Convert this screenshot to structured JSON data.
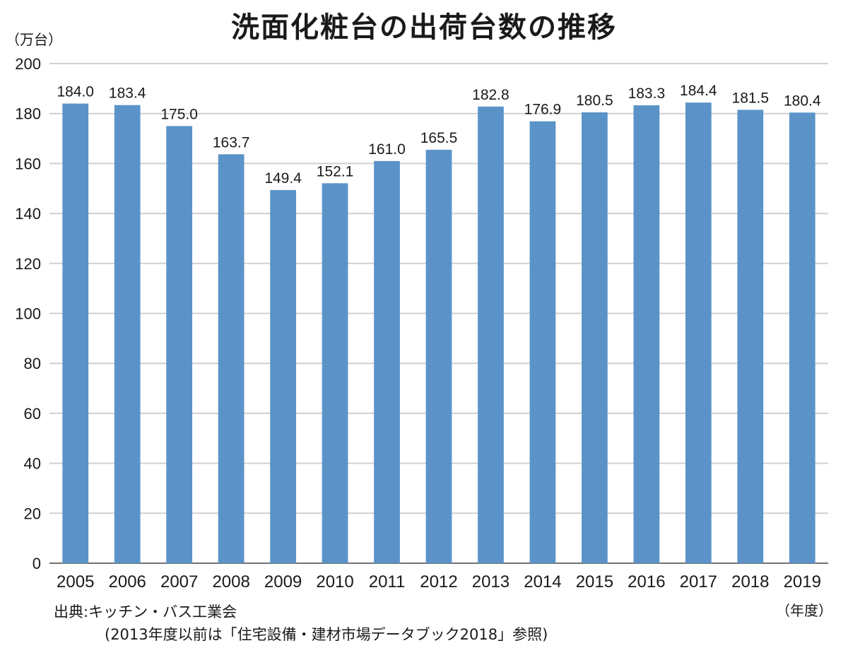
{
  "chart_data": {
    "type": "bar",
    "title": "洗面化粧台の出荷台数の推移",
    "ylabel": "（万台）",
    "xlabel": "（年度）",
    "categories": [
      "2005",
      "2006",
      "2007",
      "2008",
      "2009",
      "2010",
      "2011",
      "2012",
      "2013",
      "2014",
      "2015",
      "2016",
      "2017",
      "2018",
      "2019"
    ],
    "values": [
      184.0,
      183.4,
      175.0,
      163.7,
      149.4,
      152.1,
      161.0,
      165.5,
      182.8,
      176.9,
      180.5,
      183.3,
      184.4,
      181.5,
      180.4
    ],
    "data_labels": [
      "184.0",
      "183.4",
      "175.0",
      "163.7",
      "149.4",
      "152.1",
      "161.0",
      "165.5",
      "182.8",
      "176.9",
      "180.5",
      "183.3",
      "184.4",
      "181.5",
      "180.4"
    ],
    "ylim": [
      0,
      200
    ],
    "yticks": [
      0,
      20,
      40,
      60,
      80,
      100,
      120,
      140,
      160,
      180,
      200
    ],
    "grid": true,
    "bar_color": "#5b93c9",
    "gridline_color": "#d0d0d0",
    "source_line_1": "出典:キッチン・バス工業会",
    "source_line_2": "(2013年度以前は「住宅設備・建材市場データブック2018」参照)"
  }
}
